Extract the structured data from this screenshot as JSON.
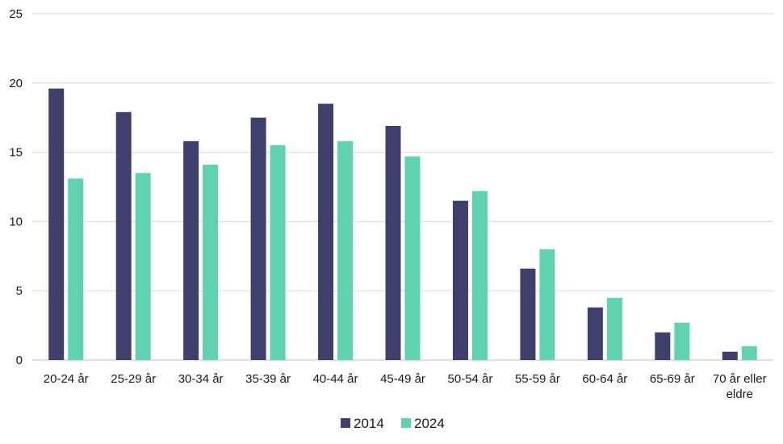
{
  "chart_data": {
    "type": "bar",
    "title": "",
    "xlabel": "",
    "ylabel": "",
    "ylim": [
      0,
      25
    ],
    "yticks": [
      0,
      5,
      10,
      15,
      20,
      25
    ],
    "grid": true,
    "legend_position": "bottom",
    "categories": [
      [
        "20-24 år"
      ],
      [
        "25-29 år"
      ],
      [
        "30-34 år"
      ],
      [
        "35-39 år"
      ],
      [
        "40-44 år"
      ],
      [
        "45-49 år"
      ],
      [
        "50-54 år"
      ],
      [
        "55-59 år"
      ],
      [
        "60-64 år"
      ],
      [
        "65-69 år"
      ],
      [
        "70 år eller",
        "eldre"
      ]
    ],
    "series": [
      {
        "name": "2014",
        "color": "#3f3f6b",
        "values": [
          19.6,
          17.9,
          15.8,
          17.5,
          18.5,
          16.9,
          11.5,
          6.6,
          3.8,
          2.0,
          0.6
        ]
      },
      {
        "name": "2024",
        "color": "#5fd3b0",
        "values": [
          13.1,
          13.5,
          14.1,
          15.5,
          15.8,
          14.7,
          12.2,
          8.0,
          4.5,
          2.7,
          1.0
        ]
      }
    ]
  }
}
